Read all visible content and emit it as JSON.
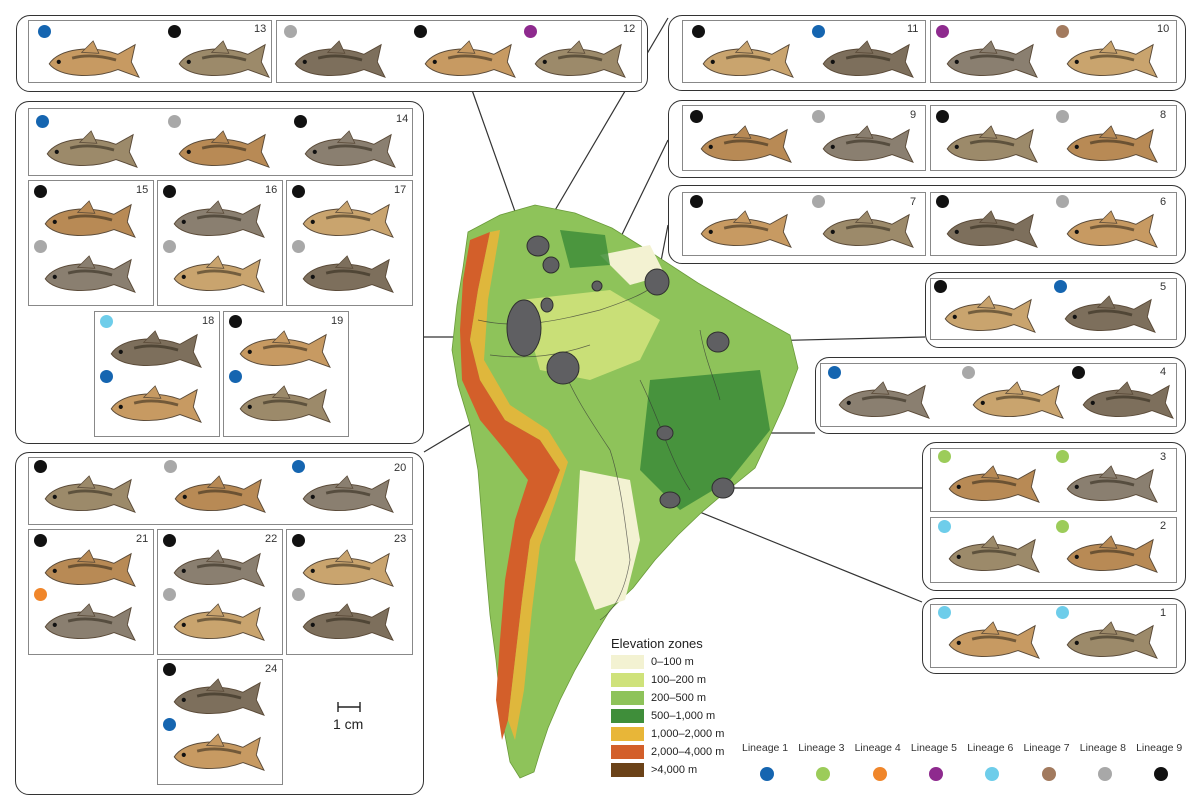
{
  "colors": {
    "lineage1": "#1565b0",
    "lineage3": "#9ccc5a",
    "lineage4": "#f0862a",
    "lineage5": "#8e2a8e",
    "lineage6": "#6ecdea",
    "lineage7": "#a27a5e",
    "lineage8": "#a8a8a8",
    "lineage9": "#111111"
  },
  "legend": {
    "title": "Elevation zones",
    "items": [
      {
        "label": "0–100 m",
        "color": "#f3f2d2"
      },
      {
        "label": "100–200 m",
        "color": "#cfe27a"
      },
      {
        "label": "200–500 m",
        "color": "#8ec35a"
      },
      {
        "label": "500–1,000 m",
        "color": "#3f8e3a"
      },
      {
        "label": "1,000–2,000 m",
        "color": "#e8b638"
      },
      {
        "label": "2,000–4,000 m",
        "color": "#d35f2a"
      },
      {
        "label": ">4,000 m",
        "color": "#6b4218"
      }
    ]
  },
  "scale_bar": {
    "label": "1 cm"
  },
  "lineages": [
    {
      "label": "Lineage 1",
      "color": "#1565b0"
    },
    {
      "label": "Lineage 3",
      "color": "#9ccc5a"
    },
    {
      "label": "Lineage 4",
      "color": "#f0862a"
    },
    {
      "label": "Lineage 5",
      "color": "#8e2a8e"
    },
    {
      "label": "Lineage 6",
      "color": "#6ecdea"
    },
    {
      "label": "Lineage 7",
      "color": "#a27a5e"
    },
    {
      "label": "Lineage 8",
      "color": "#a8a8a8"
    },
    {
      "label": "Lineage 9",
      "color": "#111111"
    }
  ],
  "assemblages": [
    {
      "id": "1",
      "fish": [
        "lineage6",
        "lineage6"
      ]
    },
    {
      "id": "2",
      "fish": [
        "lineage6",
        "lineage3"
      ]
    },
    {
      "id": "3",
      "fish": [
        "lineage3",
        "lineage3"
      ]
    },
    {
      "id": "4",
      "fish": [
        "lineage1",
        "lineage8",
        "lineage9"
      ]
    },
    {
      "id": "5",
      "fish": [
        "lineage9",
        "lineage1"
      ]
    },
    {
      "id": "6",
      "fish": [
        "lineage9",
        "lineage8"
      ]
    },
    {
      "id": "7",
      "fish": [
        "lineage9",
        "lineage8"
      ]
    },
    {
      "id": "8",
      "fish": [
        "lineage9",
        "lineage8"
      ]
    },
    {
      "id": "9",
      "fish": [
        "lineage9",
        "lineage8"
      ]
    },
    {
      "id": "10",
      "fish": [
        "lineage5",
        "lineage7"
      ]
    },
    {
      "id": "11",
      "fish": [
        "lineage9",
        "lineage1"
      ]
    },
    {
      "id": "12",
      "fish": [
        "lineage8",
        "lineage9",
        "lineage5"
      ]
    },
    {
      "id": "13",
      "fish": [
        "lineage1",
        "lineage9"
      ]
    },
    {
      "id": "14",
      "fish": [
        "lineage1",
        "lineage8",
        "lineage9"
      ]
    },
    {
      "id": "15",
      "fish": [
        "lineage9",
        "lineage8"
      ]
    },
    {
      "id": "16",
      "fish": [
        "lineage9",
        "lineage8"
      ]
    },
    {
      "id": "17",
      "fish": [
        "lineage9",
        "lineage8"
      ]
    },
    {
      "id": "18",
      "fish": [
        "lineage6",
        "lineage1"
      ]
    },
    {
      "id": "19",
      "fish": [
        "lineage9",
        "lineage1"
      ]
    },
    {
      "id": "20",
      "fish": [
        "lineage9",
        "lineage8",
        "lineage1"
      ]
    },
    {
      "id": "21",
      "fish": [
        "lineage9",
        "lineage4"
      ]
    },
    {
      "id": "22",
      "fish": [
        "lineage9",
        "lineage8"
      ]
    },
    {
      "id": "23",
      "fish": [
        "lineage9",
        "lineage8"
      ]
    },
    {
      "id": "24",
      "fish": [
        "lineage9",
        "lineage1"
      ]
    }
  ]
}
